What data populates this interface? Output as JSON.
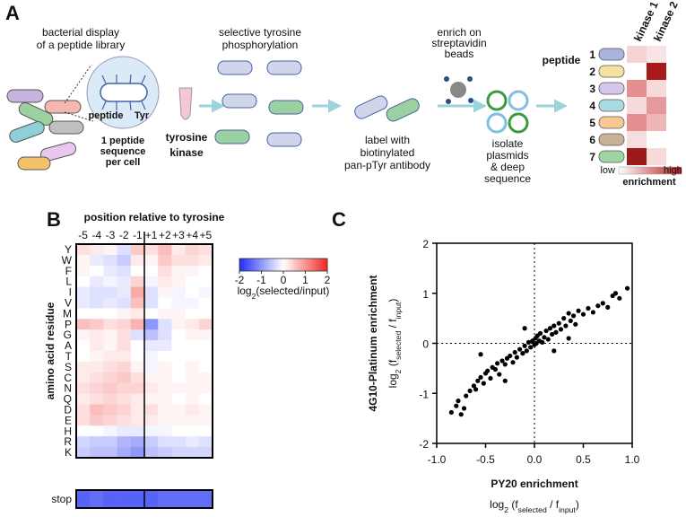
{
  "panel_a": {
    "label": "A",
    "display_title": [
      "bacterial display",
      "of a peptide library"
    ],
    "peptide": "peptide",
    "tyr": "Tyr",
    "cell_note": [
      "1 peptide",
      "sequence",
      "per cell"
    ],
    "kinase": [
      "tyrosine",
      "kinase"
    ],
    "phos_title": [
      "selective tyrosine",
      "phosphorylation"
    ],
    "label_step": [
      "label with",
      "biotinylated",
      "pan-pTyr antibody"
    ],
    "enrich_step": [
      "enrich on",
      "streptavidin",
      "beads"
    ],
    "sequence_step": [
      "isolate",
      "plasmids",
      "& deep",
      "sequence"
    ],
    "peptide_header": "peptide",
    "peptide_numbers": [
      "1",
      "2",
      "3",
      "4",
      "5",
      "6",
      "7"
    ],
    "kinases": [
      "kinase 1",
      "kinase 2"
    ],
    "scale_low": "low",
    "scale_high": "high",
    "scale_title": "enrichment"
  },
  "chart_data": [
    {
      "type": "heatmap",
      "panel_label": "B",
      "title": "position relative to tyrosine",
      "y_label": "amino acid residue",
      "categories": [
        "-5",
        "-4",
        "-3",
        "-2",
        "-1",
        "+1",
        "+2",
        "+3",
        "+4",
        "+5"
      ],
      "rows": [
        "Y",
        "W",
        "F",
        "L",
        "I",
        "V",
        "M",
        "P",
        "G",
        "A",
        "T",
        "S",
        "C",
        "N",
        "Q",
        "D",
        "E",
        "H",
        "R",
        "K"
      ],
      "values": [
        [
          0.3,
          0.2,
          0.1,
          -0.3,
          0.5,
          0.3,
          0.6,
          0.2,
          0.4,
          0.3
        ],
        [
          0.1,
          -0.2,
          -0.3,
          -0.5,
          0.2,
          0.1,
          0.5,
          0.3,
          0.3,
          0.2
        ],
        [
          0.1,
          0.0,
          -0.2,
          -0.3,
          0.0,
          0.0,
          0.3,
          0.1,
          0.1,
          0.0
        ],
        [
          0.0,
          -0.2,
          -0.1,
          -0.2,
          0.4,
          -0.1,
          0.2,
          0.1,
          0.0,
          0.0
        ],
        [
          -0.2,
          -0.3,
          -0.3,
          -0.2,
          0.8,
          -0.3,
          0.1,
          -0.1,
          0.0,
          -0.1
        ],
        [
          -0.2,
          -0.3,
          -0.2,
          -0.3,
          0.6,
          -0.3,
          0.0,
          -0.1,
          -0.1,
          0.0
        ],
        [
          0.0,
          0.0,
          0.0,
          0.1,
          0.2,
          0.0,
          0.1,
          0.1,
          0.0,
          0.0
        ],
        [
          0.6,
          0.5,
          0.3,
          0.4,
          0.7,
          -1.0,
          -0.3,
          0.1,
          0.2,
          0.4
        ],
        [
          0.1,
          0.2,
          0.1,
          0.3,
          -0.3,
          -0.6,
          -0.3,
          0.0,
          0.1,
          0.1
        ],
        [
          0.0,
          0.2,
          0.1,
          0.3,
          0.0,
          -0.2,
          -0.2,
          0.0,
          0.0,
          0.0
        ],
        [
          0.0,
          0.1,
          0.2,
          0.2,
          0.0,
          -0.1,
          0.0,
          0.0,
          0.0,
          0.0
        ],
        [
          0.2,
          0.2,
          0.3,
          0.4,
          0.1,
          -0.1,
          0.1,
          0.0,
          0.1,
          0.0
        ],
        [
          0.2,
          0.3,
          0.4,
          0.5,
          0.3,
          0.1,
          0.1,
          0.0,
          0.1,
          0.1
        ],
        [
          0.3,
          0.4,
          0.5,
          0.4,
          0.4,
          0.2,
          0.1,
          0.1,
          0.1,
          0.1
        ],
        [
          0.2,
          0.3,
          0.4,
          0.3,
          0.2,
          0.1,
          0.1,
          0.0,
          0.1,
          0.0
        ],
        [
          0.3,
          0.6,
          0.5,
          0.4,
          0.2,
          0.3,
          0.1,
          0.1,
          0.2,
          0.1
        ],
        [
          0.3,
          0.5,
          0.4,
          0.3,
          0.2,
          0.2,
          0.1,
          0.1,
          0.1,
          0.1
        ],
        [
          0.0,
          0.0,
          -0.1,
          -0.2,
          -0.2,
          -0.1,
          -0.1,
          0.0,
          0.0,
          0.0
        ],
        [
          -0.4,
          -0.5,
          -0.5,
          -0.7,
          -0.8,
          -0.5,
          -0.3,
          -0.3,
          -0.2,
          -0.3
        ],
        [
          -0.5,
          -0.6,
          -0.6,
          -0.8,
          -1.0,
          -0.6,
          -0.5,
          -0.4,
          -0.4,
          -0.4
        ]
      ],
      "stop_row": {
        "label": "stop",
        "values": [
          -1.5,
          -1.4,
          -1.5,
          -1.5,
          -1.5,
          -1.5,
          -1.4,
          -1.4,
          -1.4,
          -1.4
        ]
      },
      "zlim": [
        -2,
        2
      ],
      "zticks": [
        -2,
        -1,
        0,
        1,
        2
      ],
      "colors": [
        "#1f2ef5",
        "#ffffff",
        "#ee2a22"
      ],
      "colorbar_label": [
        "log",
        "2",
        "(selected/input)"
      ]
    },
    {
      "type": "scatter",
      "panel_label": "C",
      "color": "#000000",
      "x_label": "PY20 enrichment",
      "x_units": [
        "log",
        "2",
        " (f",
        "selected",
        " / f",
        "input",
        ")"
      ],
      "y_label": "4G10-Platinum enrichment",
      "y_units": [
        "log",
        "2",
        " (f",
        "selected",
        " / f",
        "input",
        ")"
      ],
      "xlim": [
        -1,
        1
      ],
      "xticks": [
        {
          "value": -1,
          "label": "-1.0"
        },
        {
          "value": -0.5,
          "label": "-0.5"
        },
        {
          "value": 0,
          "label": "0.0"
        },
        {
          "value": 0.5,
          "label": "0.5"
        },
        {
          "value": 1,
          "label": "1.0"
        }
      ],
      "ylim": [
        -2,
        2
      ],
      "yticks": [
        -2,
        -1,
        0,
        1,
        2
      ],
      "x": [
        -0.85,
        -0.8,
        -0.78,
        -0.75,
        -0.72,
        -0.7,
        -0.66,
        -0.62,
        -0.6,
        -0.58,
        -0.55,
        -0.52,
        -0.5,
        -0.48,
        -0.45,
        -0.43,
        -0.4,
        -0.38,
        -0.36,
        -0.33,
        -0.3,
        -0.28,
        -0.25,
        -0.22,
        -0.2,
        -0.18,
        -0.15,
        -0.12,
        -0.1,
        -0.08,
        -0.06,
        -0.04,
        -0.02,
        0.0,
        0.01,
        0.02,
        0.03,
        0.05,
        0.06,
        0.08,
        0.1,
        0.12,
        0.14,
        0.16,
        0.18,
        0.2,
        0.22,
        0.25,
        0.27,
        0.3,
        0.32,
        0.35,
        0.37,
        0.4,
        0.42,
        0.45,
        0.5,
        0.55,
        0.6,
        0.65,
        0.7,
        0.75,
        0.8,
        0.83,
        0.87,
        0.95,
        -0.55,
        -0.1,
        0.2,
        0.35,
        -0.3
      ],
      "values": [
        -1.38,
        -1.25,
        -1.15,
        -1.42,
        -1.3,
        -1.05,
        -0.95,
        -0.85,
        -0.92,
        -0.75,
        -0.68,
        -0.8,
        -0.6,
        -0.55,
        -0.7,
        -0.48,
        -0.52,
        -0.4,
        -0.62,
        -0.35,
        -0.42,
        -0.3,
        -0.25,
        -0.38,
        -0.18,
        -0.28,
        -0.12,
        -0.2,
        -0.05,
        -0.15,
        0.02,
        -0.08,
        0.05,
        -0.03,
        0.1,
        0.0,
        0.15,
        0.05,
        0.2,
        0.02,
        0.12,
        0.25,
        0.08,
        0.3,
        0.18,
        0.35,
        0.22,
        0.4,
        0.28,
        0.5,
        0.35,
        0.6,
        0.45,
        0.55,
        0.38,
        0.65,
        0.58,
        0.7,
        0.62,
        0.75,
        0.8,
        0.72,
        0.95,
        1.0,
        0.9,
        1.1,
        -0.22,
        0.3,
        -0.15,
        0.1,
        -0.75
      ]
    }
  ]
}
